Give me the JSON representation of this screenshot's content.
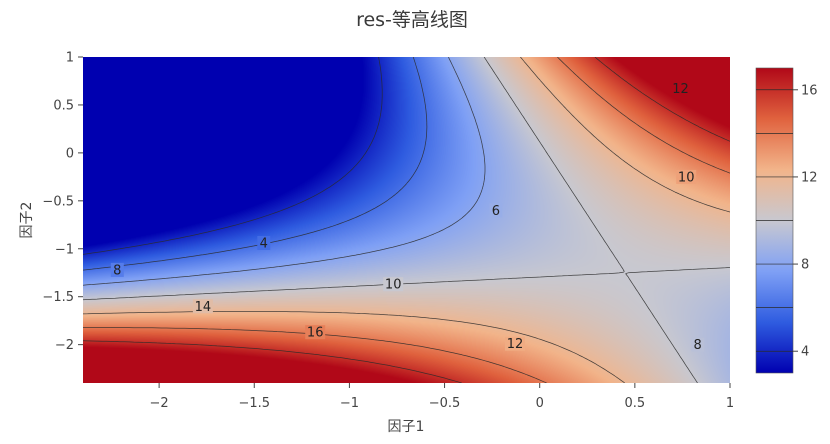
{
  "chart_data": {
    "type": "heatmap",
    "subtype": "contour",
    "title": "res-等高线图",
    "xlabel": "因子1",
    "ylabel": "因子2",
    "xlim": [
      -2.4,
      1.0
    ],
    "ylim": [
      -2.4,
      1.0
    ],
    "x_ticks": [
      -2,
      -1.5,
      -1,
      -0.5,
      0,
      0.5,
      1
    ],
    "x_tick_labels": [
      "−2",
      "−1.5",
      "−1",
      "−0.5",
      "0",
      "0.5",
      "1"
    ],
    "y_ticks": [
      1,
      0.5,
      0,
      -0.5,
      -1,
      -1.5,
      -2
    ],
    "y_tick_labels": [
      "1",
      "0.5",
      "0",
      "−0.5",
      "−1",
      "−1.5",
      "−2"
    ],
    "z_range": [
      3,
      17
    ],
    "colorscale": [
      "#0000b0",
      "#2f5ce0",
      "#7fa0f5",
      "#c8c8d0",
      "#f2b48a",
      "#e0623e",
      "#b10818"
    ],
    "colorbar_ticks": [
      16,
      12,
      8,
      4
    ],
    "colorbar_tick_labels": [
      "16",
      "12",
      "8",
      "4"
    ],
    "contour_levels": [
      4,
      6,
      8,
      10,
      12,
      14,
      16
    ],
    "contour_labels": [
      {
        "text": "4",
        "x": -1.45,
        "y": -0.94
      },
      {
        "text": "6",
        "x": -0.23,
        "y": -0.6
      },
      {
        "text": "8",
        "x": -2.22,
        "y": -1.22
      },
      {
        "text": "10",
        "x": -0.77,
        "y": -1.37
      },
      {
        "text": "14",
        "x": -1.77,
        "y": -1.6
      },
      {
        "text": "16",
        "x": -1.18,
        "y": -1.87
      },
      {
        "text": "12",
        "x": -0.13,
        "y": -1.99
      },
      {
        "text": "12",
        "x": 0.74,
        "y": 0.67
      },
      {
        "text": "10",
        "x": 0.77,
        "y": -0.25
      },
      {
        "text": "8",
        "x": 0.83,
        "y": -2.0
      }
    ],
    "grid": false,
    "legend": "colorbar-right"
  }
}
